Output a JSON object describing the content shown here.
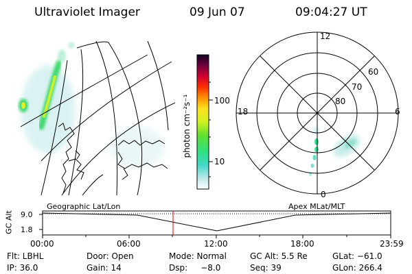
{
  "header": {
    "title": "Ultraviolet Imager",
    "date": "09 Jun 07",
    "time": "09:04:27 UT"
  },
  "colorbar": {
    "label": "photon cm⁻²s⁻¹",
    "ticks": [
      "100",
      "10"
    ]
  },
  "polar_plot": {
    "mlt_labels": [
      "12",
      "18",
      "6",
      "0"
    ],
    "lat_labels": [
      "60",
      "70",
      "80"
    ]
  },
  "timeline": {
    "left_label": "Geographic Lat/Lon",
    "right_label": "Apex MLat/MLT",
    "y_axis_label": "GC Alt",
    "y_ticks": [
      "9.0",
      "1.8"
    ],
    "x_ticks": [
      "00:00",
      "06:00",
      "12:00",
      "18:00",
      "23:59"
    ],
    "current_marker_color": "#e00000"
  },
  "info": {
    "row1": [
      {
        "label": "Flt: LBHL"
      },
      {
        "label": "Door: Open"
      },
      {
        "label": "Mode: Normal"
      },
      {
        "label": "GC Alt: 5.5 Re"
      },
      {
        "label": "GLat: −61.0"
      }
    ],
    "row2": [
      {
        "label": "IP: 36.0"
      },
      {
        "label": "Gain: 14"
      },
      {
        "label": "Dsp:     −8.0"
      },
      {
        "label": "Seq: 39"
      },
      {
        "label": "GLon: 266.4"
      }
    ]
  }
}
